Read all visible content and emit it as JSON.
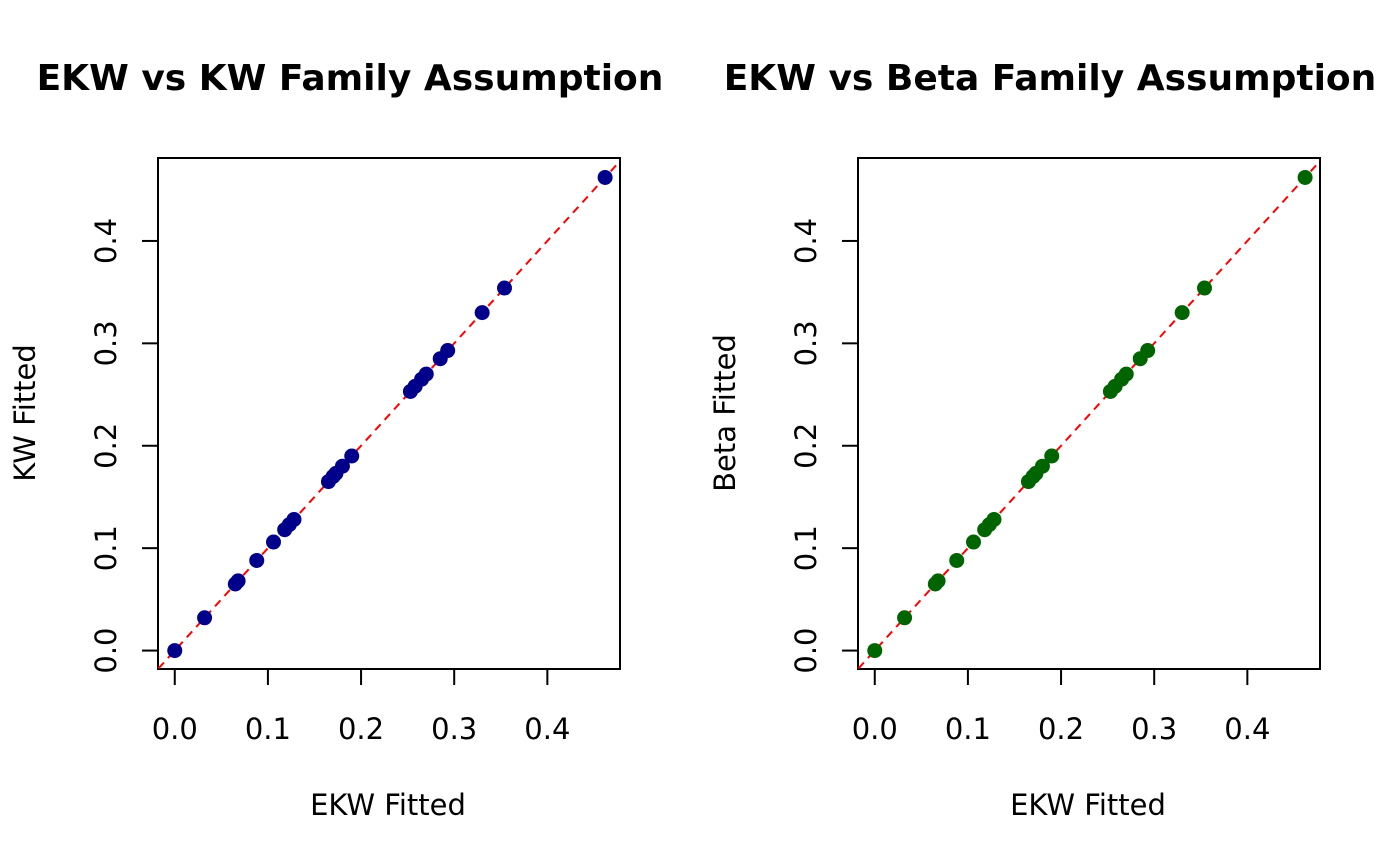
{
  "chart_data": [
    {
      "type": "scatter",
      "title": "EKW vs KW Family Assumption",
      "xlabel": "EKW Fitted",
      "ylabel": "KW Fitted",
      "xlim": [
        -0.018,
        0.478
      ],
      "ylim": [
        -0.018,
        0.481
      ],
      "xticks": [
        0.0,
        0.1,
        0.2,
        0.3,
        0.4
      ],
      "yticks": [
        0.0,
        0.1,
        0.2,
        0.3,
        0.4
      ],
      "tick_labels": [
        "0.0",
        "0.1",
        "0.2",
        "0.3",
        "0.4"
      ],
      "point_color": "#00008B",
      "reference_line": {
        "type": "y=x",
        "style": "dashed",
        "color": "#FF0000"
      },
      "series": [
        {
          "x": [
            0.0,
            0.032,
            0.065,
            0.068,
            0.088,
            0.106,
            0.118,
            0.123,
            0.128,
            0.165,
            0.17,
            0.173,
            0.18,
            0.19,
            0.253,
            0.258,
            0.265,
            0.27,
            0.285,
            0.293,
            0.33,
            0.354,
            0.462
          ],
          "y": [
            0.0,
            0.032,
            0.065,
            0.068,
            0.088,
            0.106,
            0.118,
            0.123,
            0.128,
            0.165,
            0.17,
            0.173,
            0.18,
            0.19,
            0.253,
            0.258,
            0.265,
            0.27,
            0.285,
            0.293,
            0.33,
            0.354,
            0.462
          ]
        }
      ]
    },
    {
      "type": "scatter",
      "title": "EKW vs Beta Family Assumption",
      "xlabel": "EKW Fitted",
      "ylabel": "Beta Fitted",
      "xlim": [
        -0.018,
        0.478
      ],
      "ylim": [
        -0.018,
        0.481
      ],
      "xticks": [
        0.0,
        0.1,
        0.2,
        0.3,
        0.4
      ],
      "yticks": [
        0.0,
        0.1,
        0.2,
        0.3,
        0.4
      ],
      "tick_labels": [
        "0.0",
        "0.1",
        "0.2",
        "0.3",
        "0.4"
      ],
      "point_color": "#006400",
      "reference_line": {
        "type": "y=x",
        "style": "dashed",
        "color": "#FF0000"
      },
      "series": [
        {
          "x": [
            0.0,
            0.032,
            0.065,
            0.068,
            0.088,
            0.106,
            0.118,
            0.123,
            0.128,
            0.165,
            0.17,
            0.173,
            0.18,
            0.19,
            0.253,
            0.258,
            0.265,
            0.27,
            0.285,
            0.293,
            0.33,
            0.354,
            0.462
          ],
          "y": [
            0.0,
            0.032,
            0.065,
            0.068,
            0.088,
            0.106,
            0.118,
            0.123,
            0.128,
            0.165,
            0.17,
            0.173,
            0.18,
            0.19,
            0.253,
            0.258,
            0.265,
            0.27,
            0.285,
            0.293,
            0.33,
            0.354,
            0.462
          ]
        }
      ]
    }
  ]
}
